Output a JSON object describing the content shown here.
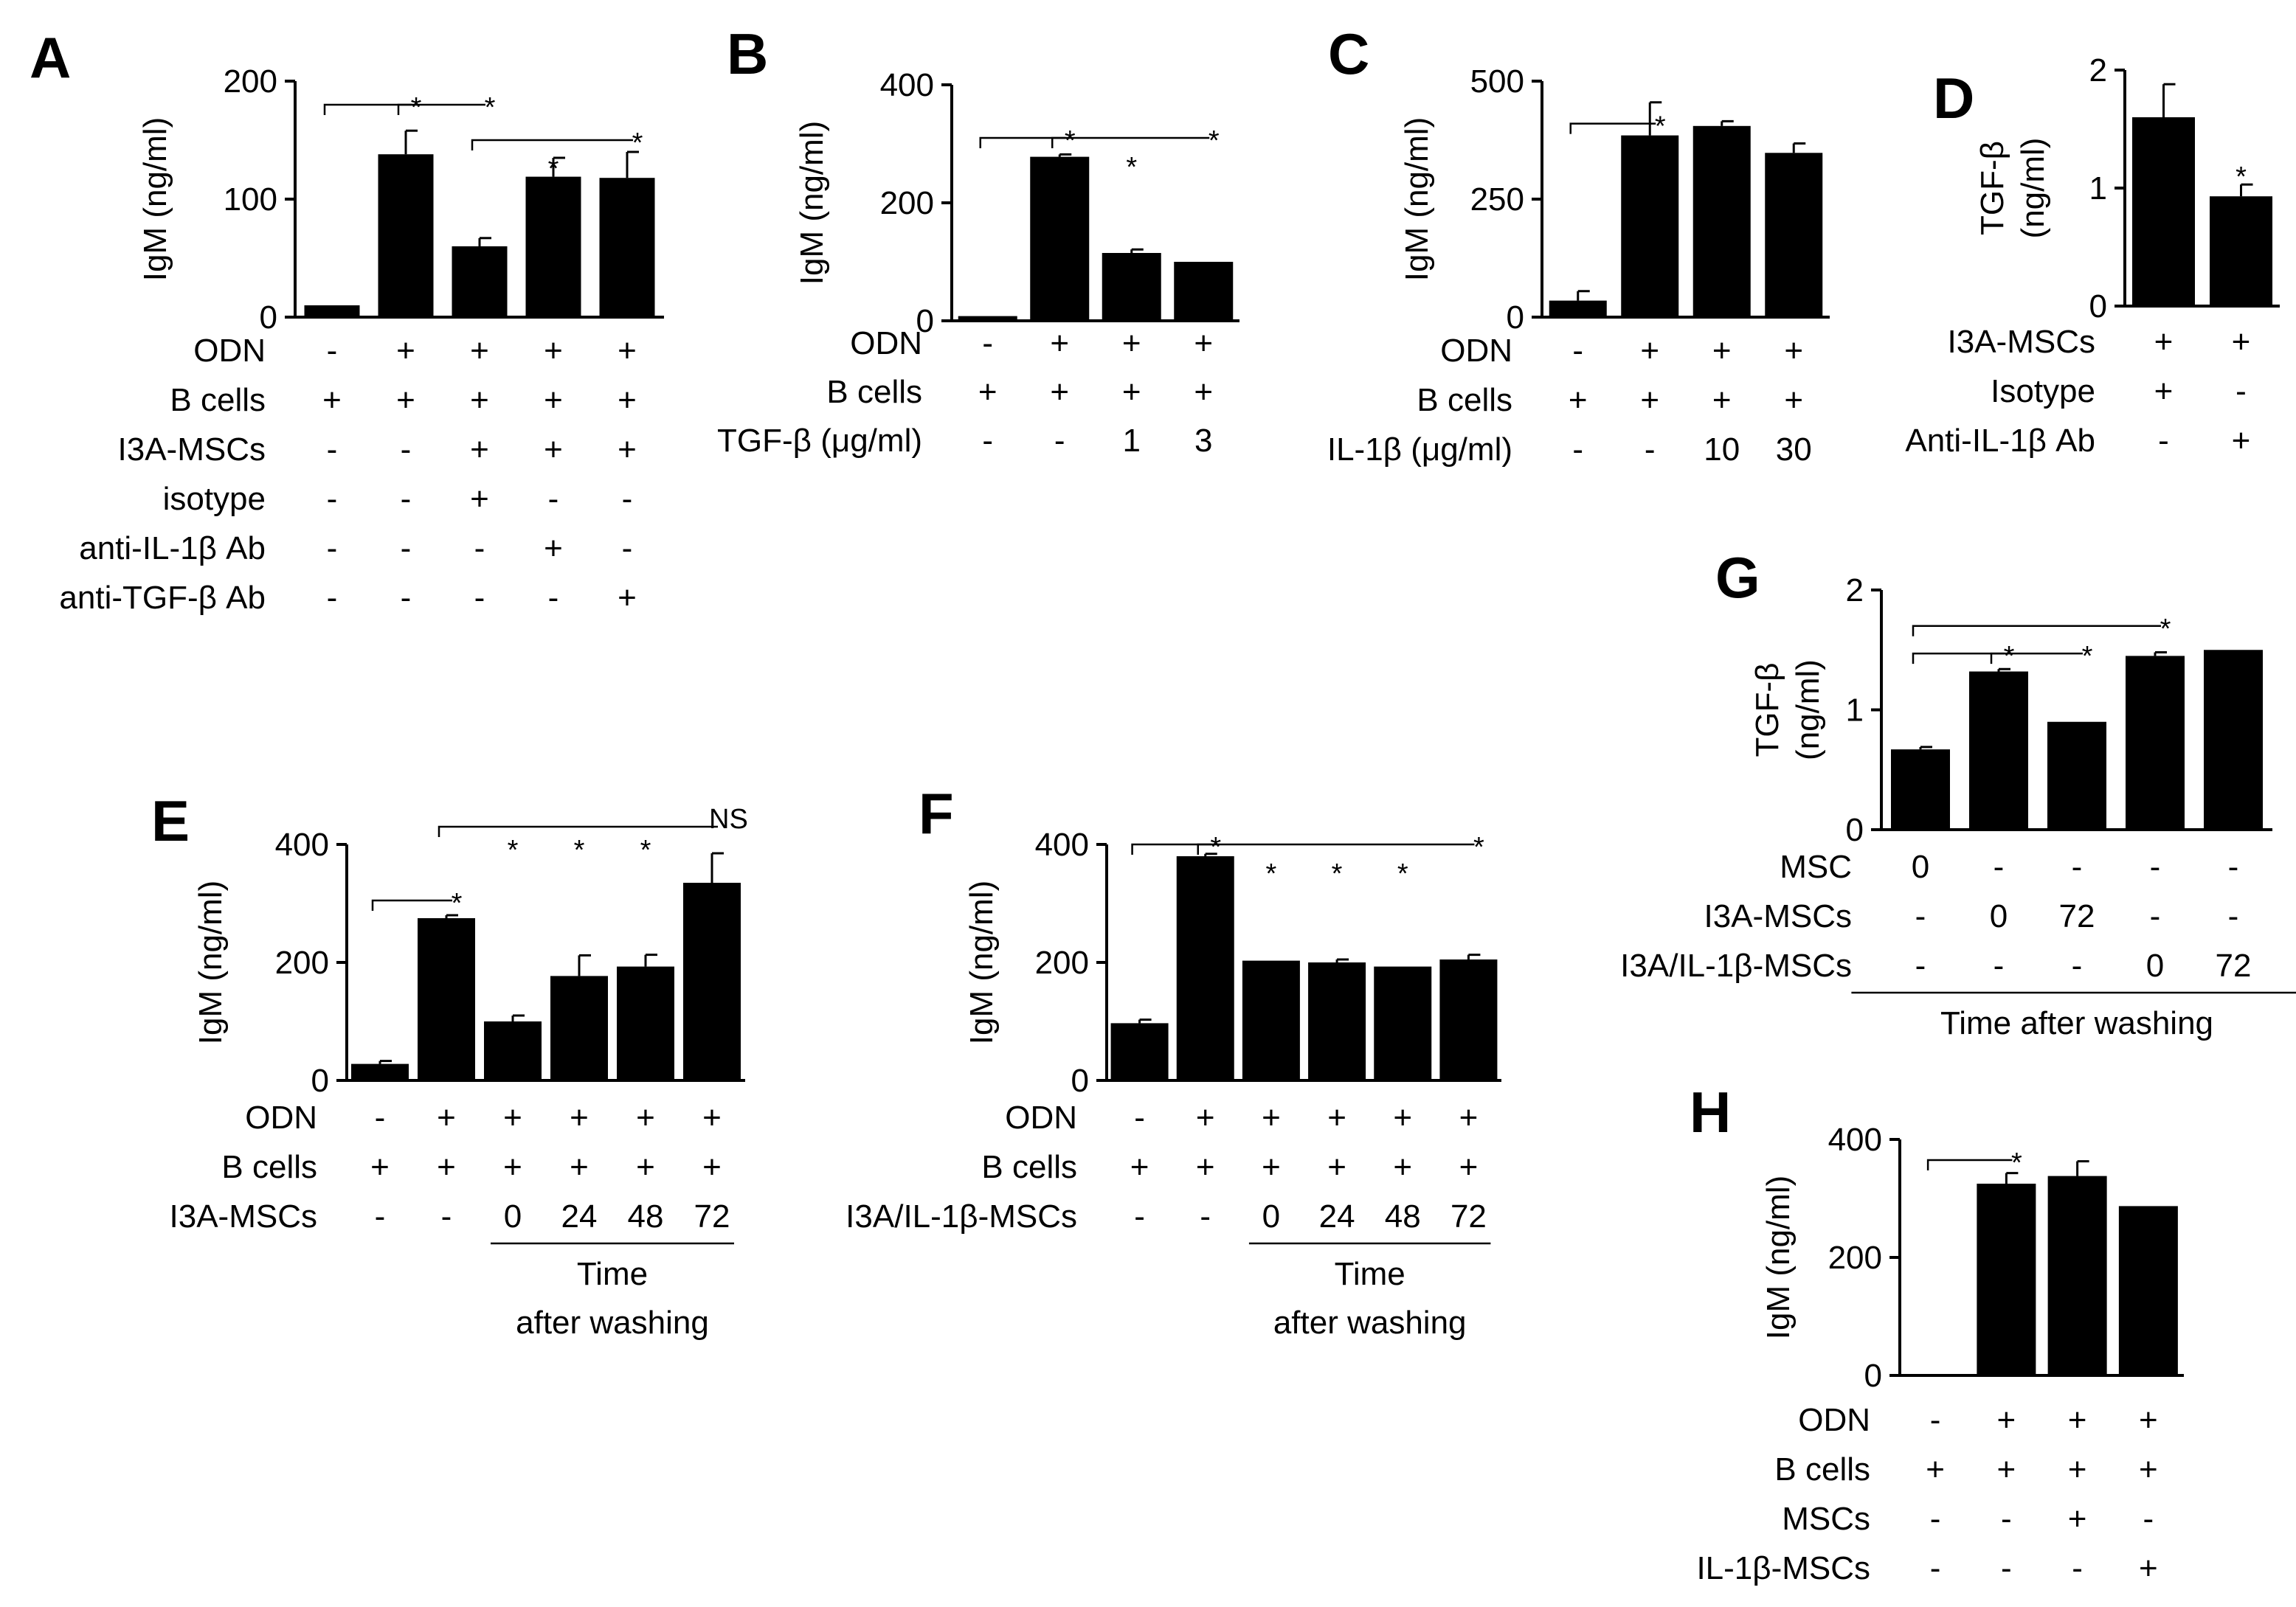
{
  "chart_data": [
    {
      "id": "A",
      "type": "bar",
      "panel_label": "A",
      "ylabel": "IgM (ng/ml)",
      "ylim": [
        0,
        200
      ],
      "yticks": [
        0,
        100,
        200
      ],
      "categories": [
        "1",
        "2",
        "3",
        "4",
        "5"
      ],
      "values": [
        10,
        138,
        60,
        119,
        118
      ],
      "errors": [
        0,
        20,
        7,
        16,
        22
      ],
      "conditions": [
        {
          "label": "ODN",
          "values": [
            "-",
            "+",
            "+",
            "+",
            "+"
          ]
        },
        {
          "label": "B cells",
          "values": [
            "+",
            "+",
            "+",
            "+",
            "+"
          ]
        },
        {
          "label": "I3A-MSCs",
          "values": [
            "-",
            "-",
            "+",
            "+",
            "+"
          ]
        },
        {
          "label": "isotype",
          "values": [
            "-",
            "-",
            "+",
            "-",
            "-"
          ]
        },
        {
          "label": "anti-IL-1β Ab",
          "values": [
            "-",
            "-",
            "-",
            "+",
            "-"
          ]
        },
        {
          "label": "anti-TGF-β Ab",
          "values": [
            "-",
            "-",
            "-",
            "-",
            "+"
          ]
        }
      ],
      "brackets": [
        {
          "from": 0,
          "to": 1,
          "label": "*",
          "y": 180
        },
        {
          "from": 1,
          "to": 2,
          "label": "*",
          "y": 180
        },
        {
          "from": 2,
          "to": 4,
          "label": "*",
          "y": 150
        }
      ],
      "marks": [
        {
          "at": 3,
          "label": "*",
          "y": 128
        }
      ]
    },
    {
      "id": "B",
      "type": "bar",
      "panel_label": "B",
      "ylabel": "IgM (ng/ml)",
      "ylim": [
        0,
        400
      ],
      "yticks": [
        0,
        200,
        400
      ],
      "categories": [
        "1",
        "2",
        "3",
        "4"
      ],
      "values": [
        8,
        278,
        115,
        100
      ],
      "errors": [
        0,
        4,
        6,
        0
      ],
      "conditions": [
        {
          "label": "ODN",
          "values": [
            "-",
            "+",
            "+",
            "+"
          ]
        },
        {
          "label": "B cells",
          "values": [
            "+",
            "+",
            "+",
            "+"
          ]
        },
        {
          "label": "TGF-β (μg/ml)",
          "values": [
            "-",
            "-",
            "1",
            "3"
          ]
        }
      ],
      "brackets": [
        {
          "from": 0,
          "to": 1,
          "label": "*",
          "y": 310
        },
        {
          "from": 1,
          "to": 3,
          "label": "*",
          "y": 310
        }
      ],
      "marks": [
        {
          "at": 2,
          "label": "*",
          "y": 265
        }
      ]
    },
    {
      "id": "C",
      "type": "bar",
      "panel_label": "C",
      "ylabel": "IgM (ng/ml)",
      "ylim": [
        0,
        500
      ],
      "yticks": [
        0,
        250,
        500
      ],
      "categories": [
        "1",
        "2",
        "3",
        "4"
      ],
      "values": [
        35,
        385,
        405,
        348
      ],
      "errors": [
        20,
        70,
        10,
        20
      ],
      "conditions": [
        {
          "label": "ODN",
          "values": [
            "-",
            "+",
            "+",
            "+"
          ]
        },
        {
          "label": "B cells",
          "values": [
            "+",
            "+",
            "+",
            "+"
          ]
        },
        {
          "label": "IL-1β (μg/ml)",
          "values": [
            "-",
            "-",
            "10",
            "30"
          ]
        }
      ],
      "brackets": [
        {
          "from": 0,
          "to": 1,
          "label": "*",
          "y": 410
        }
      ],
      "marks": []
    },
    {
      "id": "D",
      "type": "bar",
      "panel_label": "D",
      "ylabel": "TGF-β",
      "ylabel2": "(ng/ml)",
      "ylim": [
        0,
        2
      ],
      "yticks": [
        0,
        1,
        2
      ],
      "categories": [
        "1",
        "2"
      ],
      "values": [
        1.6,
        0.93
      ],
      "errors": [
        0.28,
        0.1
      ],
      "conditions": [
        {
          "label": "I3A-MSCs",
          "values": [
            "+",
            "+"
          ]
        },
        {
          "label": "Isotype",
          "values": [
            "+",
            "-"
          ]
        },
        {
          "label": "Anti-IL-1β Ab",
          "values": [
            "-",
            "+"
          ]
        }
      ],
      "brackets": [],
      "marks": [
        {
          "at": 1,
          "label": "*",
          "y": 1.12
        }
      ]
    },
    {
      "id": "E",
      "type": "bar",
      "panel_label": "E",
      "ylabel": "IgM (ng/ml)",
      "ylim": [
        0,
        400
      ],
      "yticks": [
        0,
        200,
        400
      ],
      "categories": [
        "1",
        "2",
        "3",
        "4",
        "5",
        "6"
      ],
      "values": [
        28,
        275,
        100,
        177,
        193,
        335
      ],
      "errors": [
        5,
        5,
        10,
        35,
        20,
        50
      ],
      "conditions": [
        {
          "label": "ODN",
          "values": [
            "-",
            "+",
            "+",
            "+",
            "+",
            "+"
          ]
        },
        {
          "label": "B cells",
          "values": [
            "+",
            "+",
            "+",
            "+",
            "+",
            "+"
          ]
        },
        {
          "label": "I3A-MSCs",
          "values": [
            "-",
            "-",
            "0",
            "24",
            "48",
            "72"
          ]
        }
      ],
      "brackets": [
        {
          "from": 0,
          "to": 1,
          "label": "*",
          "y": 305
        },
        {
          "from": 1,
          "to": 5,
          "label": "NS",
          "y": 430
        }
      ],
      "marks": [
        {
          "at": 2,
          "label": "*",
          "y": 395
        },
        {
          "at": 3,
          "label": "*",
          "y": 395
        },
        {
          "at": 4,
          "label": "*",
          "y": 395
        }
      ],
      "footer": {
        "from": 2,
        "to": 5,
        "line1": "Time",
        "line2": "after washing"
      }
    },
    {
      "id": "F",
      "type": "bar",
      "panel_label": "F",
      "ylabel": "IgM (ng/ml)",
      "ylim": [
        0,
        400
      ],
      "yticks": [
        0,
        200,
        400
      ],
      "categories": [
        "1",
        "2",
        "3",
        "4",
        "5",
        "6"
      ],
      "values": [
        97,
        380,
        203,
        200,
        193,
        205
      ],
      "errors": [
        6,
        4,
        0,
        5,
        0,
        8
      ],
      "conditions": [
        {
          "label": "ODN",
          "values": [
            "-",
            "+",
            "+",
            "+",
            "+",
            "+"
          ]
        },
        {
          "label": "B cells",
          "values": [
            "+",
            "+",
            "+",
            "+",
            "+",
            "+"
          ]
        },
        {
          "label": "I3A/IL-1β-MSCs",
          "values": [
            "-",
            "-",
            "0",
            "24",
            "48",
            "72"
          ]
        }
      ],
      "brackets": [
        {
          "from": 0,
          "to": 1,
          "label": "*",
          "y": 400
        },
        {
          "from": 1,
          "to": 5,
          "label": "*",
          "y": 400
        }
      ],
      "marks": [
        {
          "at": 2,
          "label": "*",
          "y": 355
        },
        {
          "at": 3,
          "label": "*",
          "y": 355
        },
        {
          "at": 4,
          "label": "*",
          "y": 355
        }
      ],
      "footer": {
        "from": 2,
        "to": 5,
        "line1": "Time",
        "line2": "after washing"
      }
    },
    {
      "id": "G",
      "type": "bar",
      "panel_label": "G",
      "ylabel": "TGF-β",
      "ylabel2": "(ng/ml)",
      "ylim": [
        0,
        2
      ],
      "yticks": [
        0,
        1,
        2
      ],
      "categories": [
        "1",
        "2",
        "3",
        "4",
        "5"
      ],
      "values": [
        0.67,
        1.32,
        0.9,
        1.45,
        1.5
      ],
      "errors": [
        0.02,
        0.02,
        0,
        0.03,
        0
      ],
      "conditions": [
        {
          "label": "MSC",
          "values": [
            "0",
            "-",
            "-",
            "-",
            "-"
          ]
        },
        {
          "label": "I3A-MSCs",
          "values": [
            "-",
            "0",
            "72",
            "-",
            "-"
          ]
        },
        {
          "label": "I3A/IL-1β-MSCs",
          "values": [
            "-",
            "-",
            "-",
            "0",
            "72"
          ]
        }
      ],
      "brackets": [
        {
          "from": 0,
          "to": 1,
          "label": "*",
          "y": 1.47
        },
        {
          "from": 1,
          "to": 2,
          "label": "*",
          "y": 1.47
        },
        {
          "from": 0,
          "to": 3,
          "label": "*",
          "y": 1.7
        }
      ],
      "marks": [],
      "footer": {
        "from": -0.6,
        "to": 4.6,
        "line1": "Time after washing",
        "line2": ""
      }
    },
    {
      "id": "H",
      "type": "bar",
      "panel_label": "H",
      "ylabel": "IgM (ng/ml)",
      "ylim": [
        0,
        400
      ],
      "yticks": [
        0,
        200,
        400
      ],
      "categories": [
        "1",
        "2",
        "3",
        "4"
      ],
      "values": [
        0,
        325,
        338,
        287
      ],
      "errors": [
        0,
        18,
        25,
        0
      ],
      "conditions": [
        {
          "label": "ODN",
          "values": [
            "-",
            "+",
            "+",
            "+"
          ]
        },
        {
          "label": "B cells",
          "values": [
            "+",
            "+",
            "+",
            "+"
          ]
        },
        {
          "label": "MSCs",
          "values": [
            "-",
            "-",
            "+",
            "-"
          ]
        },
        {
          "label": "IL-1β-MSCs",
          "values": [
            "-",
            "-",
            "-",
            "+"
          ]
        }
      ],
      "brackets": [
        {
          "from": 0,
          "to": 1,
          "label": "*",
          "y": 365
        }
      ],
      "marks": []
    }
  ]
}
